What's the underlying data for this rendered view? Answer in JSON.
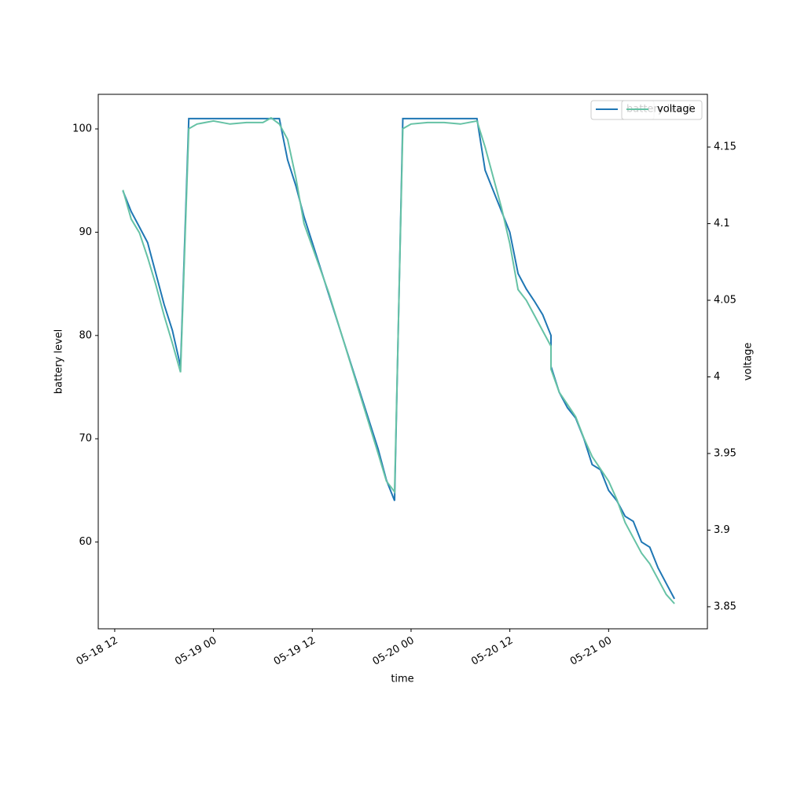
{
  "chart_data": {
    "type": "line",
    "x_label": "time",
    "y_label": "battery level",
    "y2_label": "voltage",
    "x": [
      "05-18 13",
      "05-18 14",
      "05-18 15",
      "05-18 16",
      "05-18 17",
      "05-18 18",
      "05-18 19",
      "05-18 20",
      "05-18 21",
      "05-18 22",
      "05-19 00",
      "05-19 02",
      "05-19 04",
      "05-19 06",
      "05-19 07",
      "05-19 08",
      "05-19 09",
      "05-19 10",
      "05-19 11",
      "05-19 12",
      "05-19 14",
      "05-19 16",
      "05-19 18",
      "05-19 20",
      "05-19 21",
      "05-19 22",
      "05-19 23",
      "05-20 00",
      "05-20 02",
      "05-20 04",
      "05-20 06",
      "05-20 08",
      "05-20 09",
      "05-20 10",
      "05-20 11",
      "05-20 12",
      "05-20 13",
      "05-20 14",
      "05-20 15",
      "05-20 16",
      "05-20 17",
      "05-20 17",
      "05-20 18",
      "05-20 19",
      "05-20 20",
      "05-20 21",
      "05-20 22",
      "05-20 23",
      "05-21 00",
      "05-21 01",
      "05-21 02",
      "05-21 03",
      "05-21 04",
      "05-21 05",
      "05-21 06",
      "05-21 07",
      "05-21 08"
    ],
    "series": [
      {
        "name": "battery level",
        "color": "#1f77b4",
        "axis": "y",
        "values": [
          94,
          92,
          90.5,
          89,
          86,
          83,
          80.5,
          77,
          101,
          101,
          101,
          101,
          101,
          101,
          101,
          101,
          97,
          94.5,
          91.5,
          89,
          84,
          79,
          74,
          69,
          66,
          64,
          101,
          101,
          101,
          101,
          101,
          101,
          96,
          94,
          92,
          90,
          86,
          84.5,
          83.3,
          82,
          80,
          77,
          74.5,
          73,
          72,
          70,
          67.5,
          67,
          65,
          64,
          62.5,
          62,
          60,
          59.5,
          57.5,
          56,
          54.5
        ]
      },
      {
        "name": "voltage",
        "color": "#66c2a5",
        "axis": "y2",
        "values": [
          4.122,
          4.103,
          4.094,
          4.078,
          4.06,
          4.04,
          4.022,
          4.003,
          4.162,
          4.165,
          4.167,
          4.165,
          4.166,
          4.166,
          4.169,
          4.165,
          4.155,
          4.13,
          4.1,
          4.085,
          4.055,
          4.02,
          3.985,
          3.95,
          3.932,
          3.925,
          4.162,
          4.165,
          4.166,
          4.166,
          4.165,
          4.167,
          4.15,
          4.13,
          4.11,
          4.087,
          4.057,
          4.05,
          4.04,
          4.03,
          4.02,
          4.005,
          3.99,
          3.982,
          3.974,
          3.96,
          3.948,
          3.94,
          3.932,
          3.92,
          3.905,
          3.895,
          3.885,
          3.878,
          3.868,
          3.858,
          3.852
        ]
      }
    ],
    "xlim": [
      "05-18 10",
      "05-21 12"
    ],
    "xticks": [
      "05-18 12",
      "05-19 00",
      "05-19 12",
      "05-20 00",
      "05-20 12",
      "05-21 00"
    ],
    "ylim": [
      51.6,
      103.35
    ],
    "yticks": [
      60,
      70,
      80,
      90,
      100
    ],
    "y2lim": [
      3.8356,
      4.1844
    ],
    "y2ticks": [
      3.85,
      3.9,
      3.95,
      4.0,
      4.05,
      4.1,
      4.15
    ],
    "legend": "upper right"
  }
}
